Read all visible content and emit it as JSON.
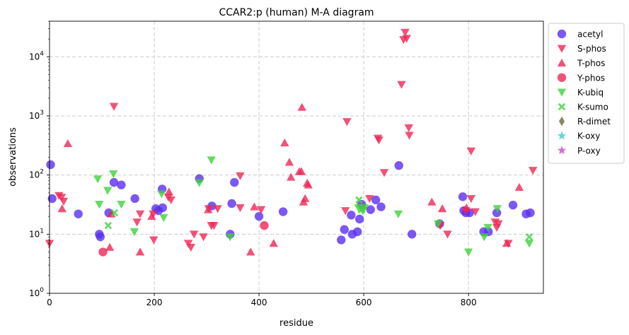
{
  "chart_data": {
    "type": "scatter",
    "title": "CCAR2:p (human) M-A diagram",
    "xlabel": "residue",
    "ylabel": "observations",
    "xlim": [
      0,
      943
    ],
    "ylim": [
      1,
      40000
    ],
    "yscale": "log",
    "grid": true,
    "legend_position": "outside-right",
    "x_ticks": [
      {
        "value": 0,
        "label": "0"
      },
      {
        "value": 200,
        "label": "200"
      },
      {
        "value": 400,
        "label": "400"
      },
      {
        "value": 600,
        "label": "600"
      },
      {
        "value": 800,
        "label": "800"
      }
    ],
    "y_ticks": [
      {
        "value": 1,
        "base": "10",
        "exp": "0"
      },
      {
        "value": 10,
        "base": "10",
        "exp": "1"
      },
      {
        "value": 100,
        "base": "10",
        "exp": "2"
      },
      {
        "value": 1000,
        "base": "10",
        "exp": "3"
      },
      {
        "value": 10000,
        "base": "10",
        "exp": "4"
      }
    ],
    "series": [
      {
        "name": "acetyl",
        "marker": "circle",
        "color": "#5a2ef0",
        "points": [
          [
            2,
            150
          ],
          [
            5,
            40
          ],
          [
            55,
            22
          ],
          [
            95,
            10
          ],
          [
            97,
            9
          ],
          [
            113,
            23
          ],
          [
            123,
            75
          ],
          [
            137,
            68
          ],
          [
            163,
            40
          ],
          [
            203,
            27
          ],
          [
            208,
            25
          ],
          [
            215,
            58
          ],
          [
            216,
            28
          ],
          [
            286,
            87
          ],
          [
            310,
            30
          ],
          [
            345,
            10
          ],
          [
            348,
            33
          ],
          [
            353,
            75
          ],
          [
            400,
            20
          ],
          [
            446,
            24
          ],
          [
            557,
            8
          ],
          [
            563,
            12
          ],
          [
            576,
            21
          ],
          [
            578,
            10
          ],
          [
            588,
            11
          ],
          [
            592,
            18
          ],
          [
            596,
            32
          ],
          [
            613,
            26
          ],
          [
            623,
            38
          ],
          [
            633,
            29
          ],
          [
            667,
            145
          ],
          [
            692,
            10
          ],
          [
            745,
            15
          ],
          [
            789,
            43
          ],
          [
            791,
            25
          ],
          [
            795,
            23
          ],
          [
            802,
            23
          ],
          [
            829,
            11
          ],
          [
            838,
            11
          ],
          [
            854,
            23
          ],
          [
            885,
            31
          ],
          [
            910,
            22
          ],
          [
            918,
            23
          ]
        ]
      },
      {
        "name": "S-phos",
        "marker": "triangle-down",
        "color": "#ee2755",
        "points": [
          [
            0,
            7
          ],
          [
            18,
            45
          ],
          [
            23,
            42
          ],
          [
            27,
            36
          ],
          [
            123,
            1450
          ],
          [
            167,
            16
          ],
          [
            173,
            22
          ],
          [
            198,
            22
          ],
          [
            199,
            8
          ],
          [
            227,
            42
          ],
          [
            232,
            38
          ],
          [
            265,
            7
          ],
          [
            270,
            6
          ],
          [
            276,
            10
          ],
          [
            294,
            9
          ],
          [
            304,
            27
          ],
          [
            309,
            14
          ],
          [
            314,
            14
          ],
          [
            321,
            27
          ],
          [
            364,
            97
          ],
          [
            364,
            28
          ],
          [
            404,
            26
          ],
          [
            565,
            25
          ],
          [
            568,
            800
          ],
          [
            611,
            40
          ],
          [
            627,
            420
          ],
          [
            629,
            390
          ],
          [
            639,
            110
          ],
          [
            672,
            3400
          ],
          [
            676,
            19500
          ],
          [
            679,
            26000
          ],
          [
            682,
            20500
          ],
          [
            686,
            630
          ],
          [
            687,
            470
          ],
          [
            746,
            14
          ],
          [
            760,
            10
          ],
          [
            795,
            25
          ],
          [
            805,
            40
          ],
          [
            805,
            255
          ],
          [
            813,
            24
          ],
          [
            851,
            16
          ],
          [
            854,
            13
          ],
          [
            857,
            15
          ],
          [
            876,
            7
          ],
          [
            923,
            120
          ]
        ]
      },
      {
        "name": "T-phos",
        "marker": "triangle-up",
        "color": "#ee2755",
        "points": [
          [
            24,
            27
          ],
          [
            35,
            340
          ],
          [
            115,
            6
          ],
          [
            118,
            22
          ],
          [
            173,
            5
          ],
          [
            195,
            20
          ],
          [
            228,
            52
          ],
          [
            303,
            26
          ],
          [
            384,
            5
          ],
          [
            391,
            29
          ],
          [
            428,
            7
          ],
          [
            449,
            350
          ],
          [
            458,
            165
          ],
          [
            461,
            92
          ],
          [
            477,
            115
          ],
          [
            481,
            115
          ],
          [
            482,
            1400
          ],
          [
            485,
            35
          ],
          [
            488,
            40
          ],
          [
            492,
            73
          ],
          [
            494,
            68
          ],
          [
            730,
            35
          ],
          [
            750,
            27
          ],
          [
            796,
            28
          ],
          [
            873,
            7
          ],
          [
            897,
            62
          ]
        ]
      },
      {
        "name": "Y-phos",
        "marker": "circle",
        "color": "#ee2755",
        "points": [
          [
            102,
            5
          ],
          [
            410,
            14
          ]
        ]
      },
      {
        "name": "K-ubiq",
        "marker": "triangle-down",
        "color": "#3fd23b",
        "points": [
          [
            92,
            86
          ],
          [
            95,
            32
          ],
          [
            111,
            55
          ],
          [
            122,
            105
          ],
          [
            137,
            32
          ],
          [
            162,
            11
          ],
          [
            214,
            48
          ],
          [
            218,
            19
          ],
          [
            286,
            74
          ],
          [
            309,
            180
          ],
          [
            345,
            9
          ],
          [
            590,
            28
          ],
          [
            598,
            25
          ],
          [
            601,
            28
          ],
          [
            666,
            22
          ],
          [
            742,
            15
          ],
          [
            800,
            5
          ],
          [
            830,
            9
          ],
          [
            837,
            13
          ],
          [
            855,
            27
          ],
          [
            916,
            7
          ]
        ]
      },
      {
        "name": "K-sumo",
        "marker": "x",
        "color": "#3fd23b",
        "points": [
          [
            112,
            14
          ],
          [
            124,
            23
          ],
          [
            591,
            38
          ],
          [
            596,
            26
          ],
          [
            916,
            9
          ]
        ]
      },
      {
        "name": "R-dimet",
        "marker": "diamond",
        "color": "#6b6b3a",
        "points": []
      },
      {
        "name": "K-oxy",
        "marker": "star",
        "color": "#3fc9d2",
        "points": []
      },
      {
        "name": "P-oxy",
        "marker": "star",
        "color": "#c94ac9",
        "points": []
      }
    ]
  }
}
